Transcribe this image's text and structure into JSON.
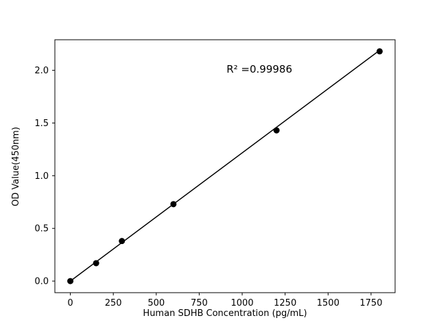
{
  "chart_data": {
    "type": "scatter",
    "title": "",
    "xlabel": "Human SDHB Concentration (pg/mL)",
    "ylabel": "OD Value(450nm)",
    "x": [
      0,
      150,
      300,
      600,
      1200,
      1800
    ],
    "y": [
      0.0,
      0.17,
      0.38,
      0.73,
      1.43,
      2.18
    ],
    "fit_line": {
      "x": [
        0,
        1800
      ],
      "y": [
        0.0,
        2.19
      ]
    },
    "xticks": [
      0,
      250,
      500,
      750,
      1000,
      1250,
      1500,
      1750
    ],
    "yticks": [
      0.0,
      0.5,
      1.0,
      1.5,
      2.0
    ],
    "xlim": [
      -90,
      1890
    ],
    "ylim": [
      -0.11,
      2.29
    ],
    "annotation": {
      "text": "R² =0.99986",
      "x": 1100,
      "y": 2.01
    },
    "marker_color": "#000000",
    "line_color": "#000000",
    "frame_color": "#000000",
    "background": "#ffffff",
    "grid": false,
    "legend": "none"
  }
}
